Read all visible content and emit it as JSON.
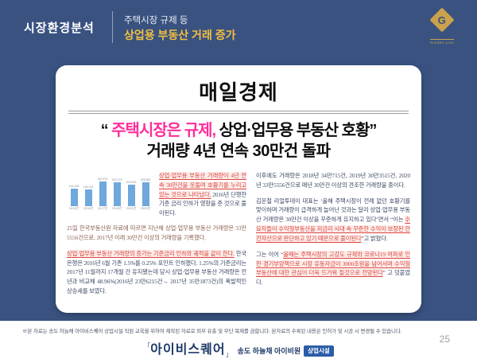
{
  "header": {
    "section_label": "시장환경분석",
    "subtitle_line1": "주택시장 규제 등",
    "subtitle_line2": "상업용 부동산 거래 증가",
    "logo": {
      "monogram": "G",
      "caption": "Golden Line"
    },
    "colors": {
      "background_navy": "#395280",
      "accent_gold": "#f2bf3f",
      "logo_gold": "#c9a24b"
    }
  },
  "article": {
    "masthead": "매일경제",
    "headline": {
      "open_quote": "“ ",
      "highlight": "주택시장은 규제,",
      "line1_rest": " 상업·업무용 부동산 호황”",
      "line2": "거래량 4년 연속 30만건 돌파",
      "highlight_color": "#ff2e9a"
    },
    "chart_data": {
      "type": "bar",
      "title": "",
      "xlabel": "",
      "ylabel": "",
      "categories": [
        "2015년",
        "2016년",
        "2017년",
        "2018년",
        "2019년",
        "2020년"
      ],
      "values": [
        244428,
        236215,
        351873,
        340715,
        303515,
        335556
      ],
      "value_labels": [
        "244,428",
        "236,215",
        "351,873",
        "340,715",
        "303,515",
        "335,556"
      ],
      "bar_color": "#6fa8dc",
      "ylim": [
        0,
        360000
      ],
      "grid": false,
      "legend": "none"
    },
    "body": {
      "p1_red": "상업·업무용 부동산 거래량이 4년 연속 30만건을 웃돌며 호황기를 누리고 있는 것으로 나타났다,",
      "p1_rest": " 2016년 단행한 기준 금리 인하가 영향을 준 것으로 풀이된다.",
      "p2": "25일 한국부동산원 자료에 따르면 지난해 상업·업무용 부동산 거래량은 33만5556건으로, 2017년 이래 30만건 이상의 거래량을 기록했다.",
      "p3_red": "상업·업무용 부동산 거래량의 증가는 기준금리 인하와 궤적을 같이 한다.",
      "p3_rest": " 한국은행은 2016년 6월 기존 1.5%를 0.25% 포인트 인하했다. 1.25%의 기준금리는 2017년 11월까지 17개월 간 유지됐는데 당시 상업·업무용 부동산 거래량은 전 년과 비교해 48.96%(2016년 23만6215건→ 2017년 35만1873건)의 폭발적인 상승세를 보였다.",
      "p4": "이후에도 거래량은 2018년 34만715건, 2019년 30만3515건, 2020년 33만5556건으로 매년 30만건 이상의 견조한 거래량을 중이다.",
      "p5_start": "김운철 리얼투데이 대표는 ‘올해 주택시장이 전례 없던 호황기를 맞이하며 거래량이 급격하게 늘어난 것과는 달리 상업·업무용 부동산 거래량은 30만건 이상을 꾸준하게 유지하고 있다’면서 “이는 ",
      "p5_red": "수요자들이 수익형부동산을 저금리 시대 속 꾸준한 수익이 보장된 안전자산으로 판단하고 있기 때문으로 풀이된다",
      "p5_end": "”고 밝혔다.",
      "p6_start": "그는 이어 “",
      "p6_red": "올해는 주택시장의 고강도 규제와 코로나19 여파로 인한 경기부양책으로 시장 유동자금이 3000조원을 넘어서며 수익형 부동산에 대한 관심이 더욱 뜨거워 질것으로 전망된다",
      "p6_end": "” 고 덧붙였다."
    }
  },
  "footer": {
    "disclaimer": "※본 자료는 송도 하늘채 아이비스퀘어 상업시설 직원 교육을 위하여 제작된 자료로 외부 유출 및 무단 복제를 금합니다. 본자료의 수록된 내용은 인허가 및 시공 시 변경될 수 있습니다.",
    "brand": {
      "bracket_open": "「",
      "name": "아이비스퀘어",
      "bracket_close": "」",
      "sub": "송도 하늘채 아이비원",
      "badge": "상업시설"
    },
    "page_number": "25"
  }
}
